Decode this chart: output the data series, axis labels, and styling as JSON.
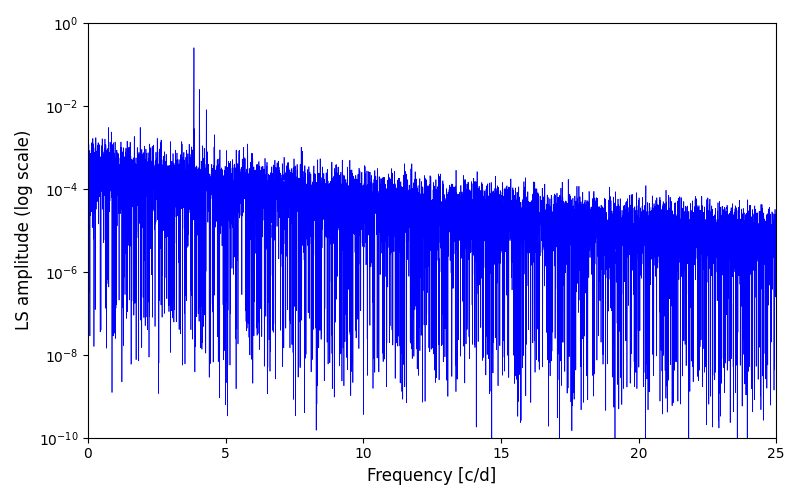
{
  "xlabel": "Frequency [c/d]",
  "ylabel": "LS amplitude (log scale)",
  "xlim": [
    0,
    25
  ],
  "ylim": [
    1e-10,
    1
  ],
  "line_color": "#0000ff",
  "line_width": 0.5,
  "figsize": [
    8.0,
    5.0
  ],
  "dpi": 100,
  "yscale": "log",
  "peaks": [
    {
      "freq": 1.9,
      "amp": 0.003
    },
    {
      "freq": 3.85,
      "amp": 0.25
    },
    {
      "freq": 4.05,
      "amp": 0.04
    },
    {
      "freq": 4.3,
      "amp": 0.008
    },
    {
      "freq": 4.6,
      "amp": 0.002
    },
    {
      "freq": 5.8,
      "amp": 0.0012
    },
    {
      "freq": 7.75,
      "amp": 0.001
    },
    {
      "freq": 11.5,
      "amp": 0.0004
    },
    {
      "freq": 14.8,
      "amp": 0.0002
    }
  ],
  "noise_seed": 17,
  "n_points": 8000,
  "freq_max": 25.0,
  "base_floor_low": 0.0004,
  "base_floor_high": 5e-06,
  "decay": 0.18
}
